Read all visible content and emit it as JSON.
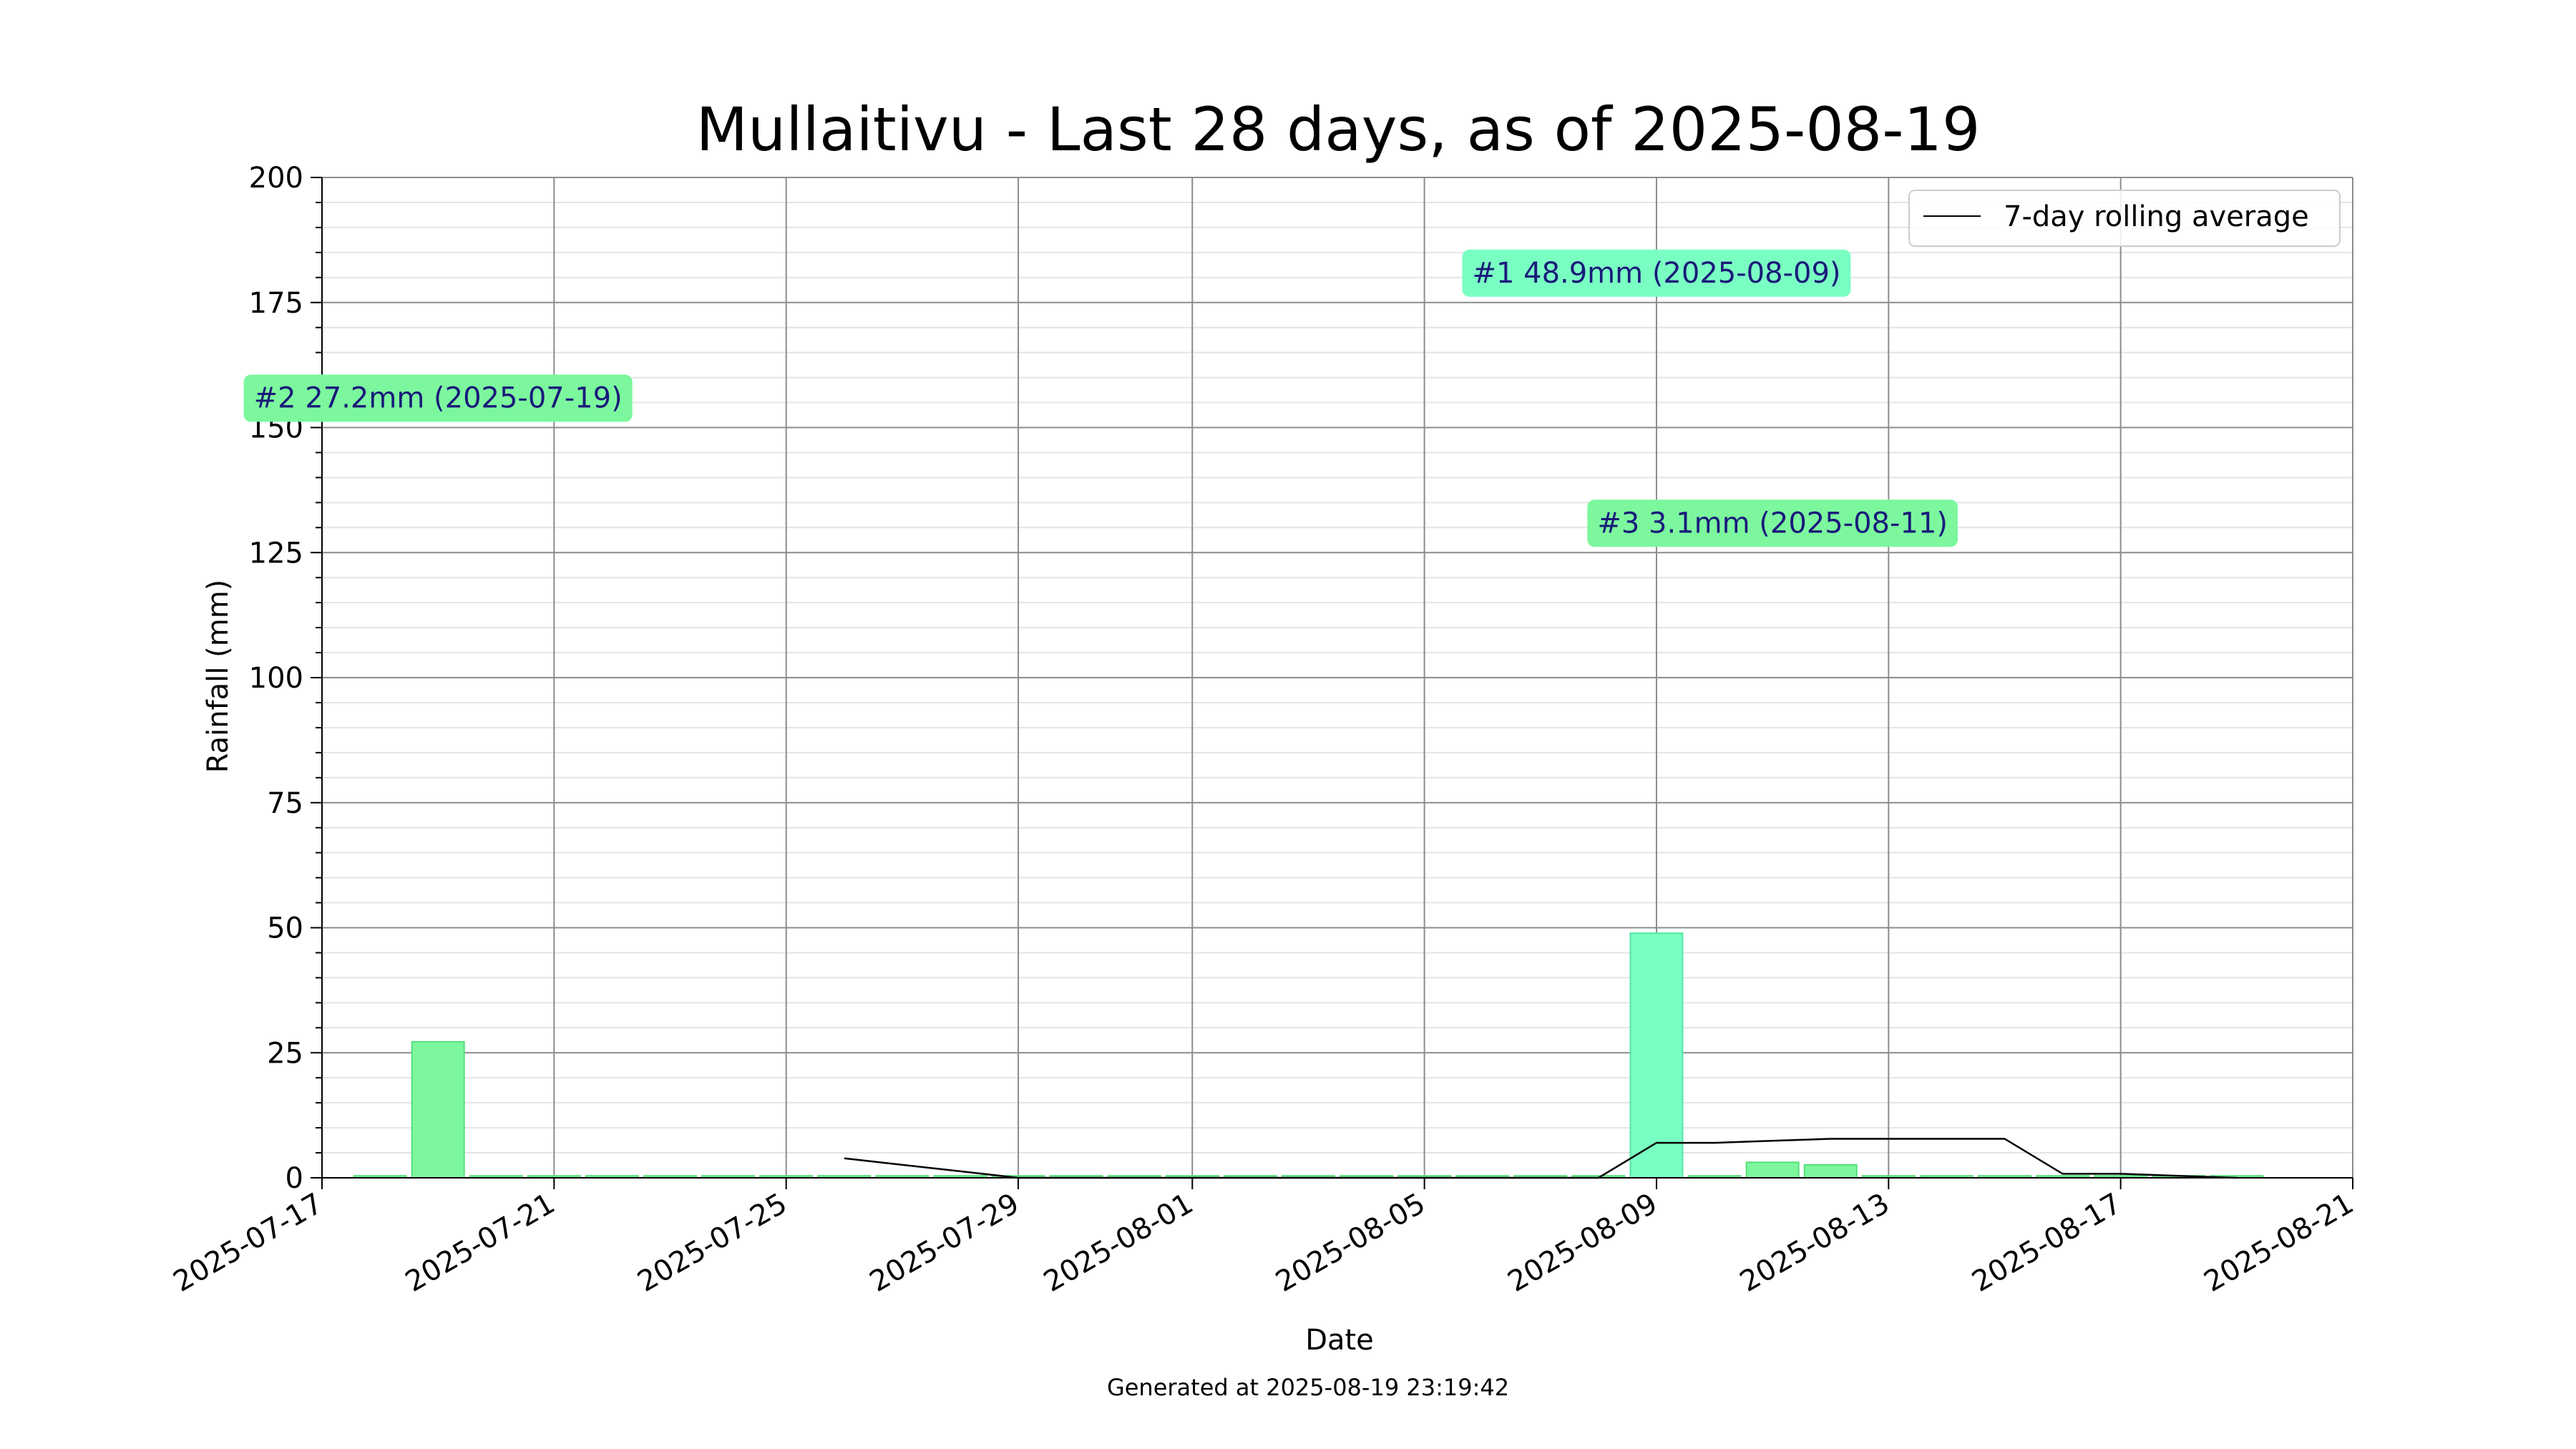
{
  "chart_data": {
    "type": "bar",
    "title": "Mullaitivu - Last 28 days, as of 2025-08-19",
    "xlabel": "Date",
    "ylabel": "Rainfall (mm)",
    "ylim": [
      0,
      200
    ],
    "xlim": [
      "2025-07-17",
      "2025-08-21"
    ],
    "y_ticks": [
      0,
      25,
      50,
      75,
      100,
      125,
      150,
      175,
      200
    ],
    "x_ticks": [
      "2025-07-17",
      "2025-07-21",
      "2025-07-25",
      "2025-07-29",
      "2025-08-01",
      "2025-08-05",
      "2025-08-09",
      "2025-08-13",
      "2025-08-17",
      "2025-08-21"
    ],
    "grid": true,
    "legend_position": "top-right",
    "bars": {
      "dates": [
        "2025-07-18",
        "2025-07-19",
        "2025-07-20",
        "2025-07-21",
        "2025-07-22",
        "2025-07-23",
        "2025-07-24",
        "2025-07-25",
        "2025-07-26",
        "2025-07-27",
        "2025-07-28",
        "2025-07-29",
        "2025-07-30",
        "2025-07-31",
        "2025-08-01",
        "2025-08-02",
        "2025-08-03",
        "2025-08-04",
        "2025-08-05",
        "2025-08-06",
        "2025-08-07",
        "2025-08-08",
        "2025-08-09",
        "2025-08-10",
        "2025-08-11",
        "2025-08-12",
        "2025-08-13",
        "2025-08-14",
        "2025-08-15",
        "2025-08-16",
        "2025-08-17",
        "2025-08-18",
        "2025-08-19"
      ],
      "values": [
        0,
        27.2,
        0,
        0,
        0,
        0,
        0,
        0,
        0,
        0,
        0,
        0,
        0,
        0,
        0,
        0,
        0,
        0,
        0,
        0,
        0,
        0,
        48.9,
        0,
        3.1,
        2.6,
        0,
        0,
        0,
        0,
        0,
        0,
        0
      ],
      "color": "#7cf79e",
      "highlight_color": "#7affc3"
    },
    "series": [
      {
        "name": "7-day rolling average",
        "dates": [
          "2025-07-26",
          "2025-07-27",
          "2025-07-28",
          "2025-07-29",
          "2025-07-30",
          "2025-07-31",
          "2025-08-01",
          "2025-08-02",
          "2025-08-03",
          "2025-08-04",
          "2025-08-05",
          "2025-08-06",
          "2025-08-07",
          "2025-08-08",
          "2025-08-09",
          "2025-08-10",
          "2025-08-11",
          "2025-08-12",
          "2025-08-13",
          "2025-08-14",
          "2025-08-15",
          "2025-08-16",
          "2025-08-17",
          "2025-08-18",
          "2025-08-19"
        ],
        "values": [
          3.9,
          2.6,
          1.3,
          0,
          0,
          0,
          0,
          0,
          0,
          0,
          0,
          0,
          0,
          0,
          7.0,
          7.0,
          7.4,
          7.8,
          7.8,
          7.8,
          7.8,
          0.8,
          0.8,
          0.4,
          0
        ],
        "color": "#000000"
      }
    ],
    "annotations": [
      {
        "text": "#1 48.9mm (2025-08-09)",
        "x": "2025-08-09",
        "y": 181,
        "color": "#7affc3"
      },
      {
        "text": "#2 27.2mm (2025-07-19)",
        "x": "2025-07-19",
        "y": 156,
        "color": "#7cf79e"
      },
      {
        "text": "#3 3.1mm (2025-08-11)",
        "x": "2025-08-11",
        "y": 131,
        "color": "#7cf79e"
      }
    ]
  },
  "footer": "Generated at 2025-08-19 23:19:42"
}
